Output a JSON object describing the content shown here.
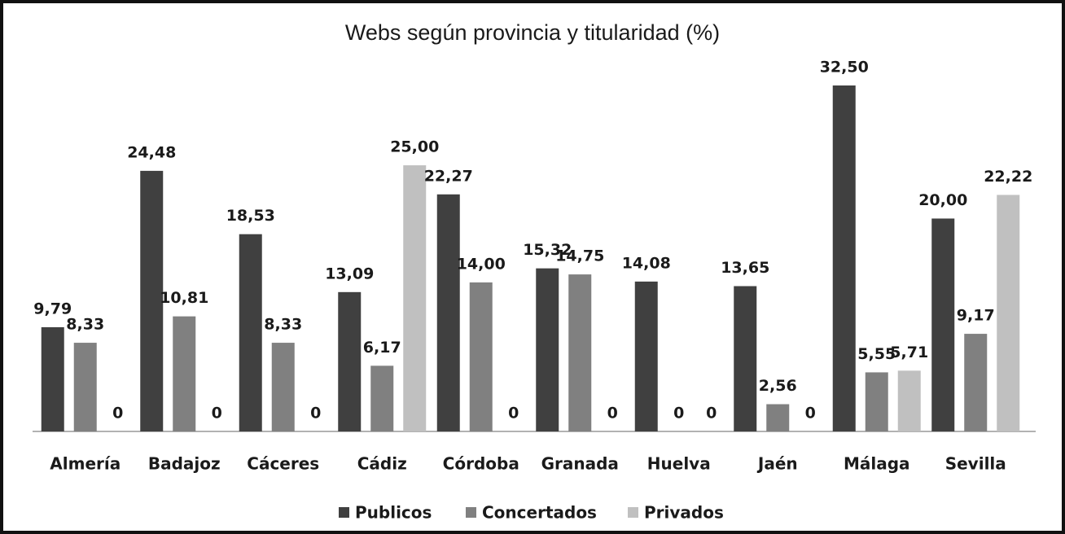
{
  "chart_data": {
    "type": "bar",
    "title": "Webs según provincia y titularidad (%)",
    "categories": [
      "Almería",
      "Badajoz",
      "Cáceres",
      "Cádiz",
      "Córdoba",
      "Granada",
      "Huelva",
      "Jaén",
      "Málaga",
      "Sevilla"
    ],
    "series": [
      {
        "name": "Publicos",
        "color": "#404040",
        "values": [
          9.79,
          24.48,
          18.53,
          13.09,
          22.27,
          15.32,
          14.08,
          13.65,
          32.5,
          20.0
        ],
        "value_labels": [
          "9,79",
          "24,48",
          "18,53",
          "13,09",
          "22,27",
          "15,32",
          "14,08",
          "13,65",
          "32,50",
          "20,00"
        ]
      },
      {
        "name": "Concertados",
        "color": "#808080",
        "values": [
          8.33,
          10.81,
          8.33,
          6.17,
          14.0,
          14.75,
          0,
          2.56,
          5.55,
          9.17
        ],
        "value_labels": [
          "8,33",
          "10,81",
          "8,33",
          "6,17",
          "14,00",
          "14,75",
          "0",
          "2,56",
          "5,55",
          "9,17"
        ]
      },
      {
        "name": "Privados",
        "color": "#c0c0c0",
        "values": [
          0,
          0,
          0,
          25.0,
          0,
          0,
          0,
          0,
          5.71,
          22.22
        ],
        "value_labels": [
          "0",
          "0",
          "0",
          "25,00",
          "0",
          "0",
          "0",
          "0",
          "5,71",
          "22,22"
        ]
      }
    ],
    "legend": "bottom"
  }
}
